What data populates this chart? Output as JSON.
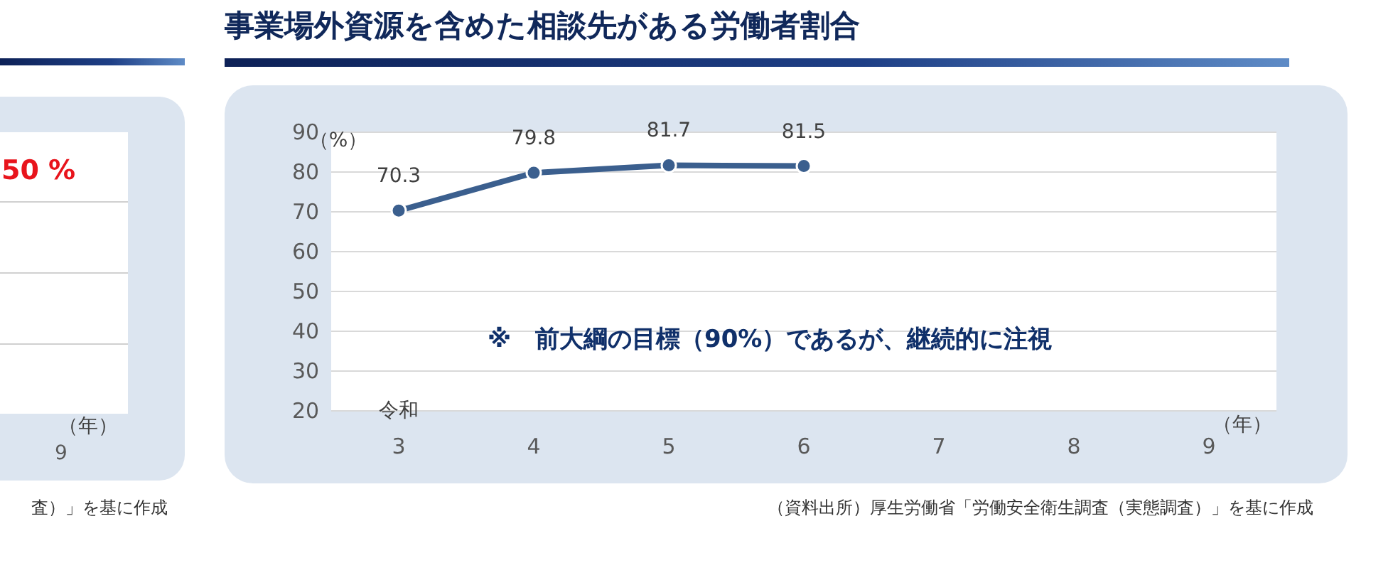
{
  "chart_data": [
    {
      "type": "other",
      "xlabel": "（年）",
      "annotations": [
        "50 %",
        "9",
        "査）」を基に作成"
      ]
    },
    {
      "type": "line",
      "title": "事業場外資源を含めた相談先がある労働者割合",
      "ylabel": "（%）",
      "xlabel": "（年）",
      "categories": [
        "3",
        "4",
        "5",
        "6",
        "7",
        "8",
        "9"
      ],
      "series": [
        {
          "color": "#3b5f8e",
          "values": [
            70.3,
            79.8,
            81.7,
            81.5,
            null,
            null,
            null
          ]
        }
      ],
      "ylim": [
        20,
        90
      ],
      "yticks": [
        20,
        30,
        40,
        50,
        60,
        70,
        80,
        90
      ],
      "grid": "y",
      "marker": "circle",
      "line_style": "solid",
      "data_labels": true,
      "annotations": [
        "令和",
        "※　前大綱の目標（90%）であるが、継続的に注視",
        "（資料出所）厚生労働省「労働安全衛生調査（実態調査）」を基に作成"
      ]
    }
  ]
}
